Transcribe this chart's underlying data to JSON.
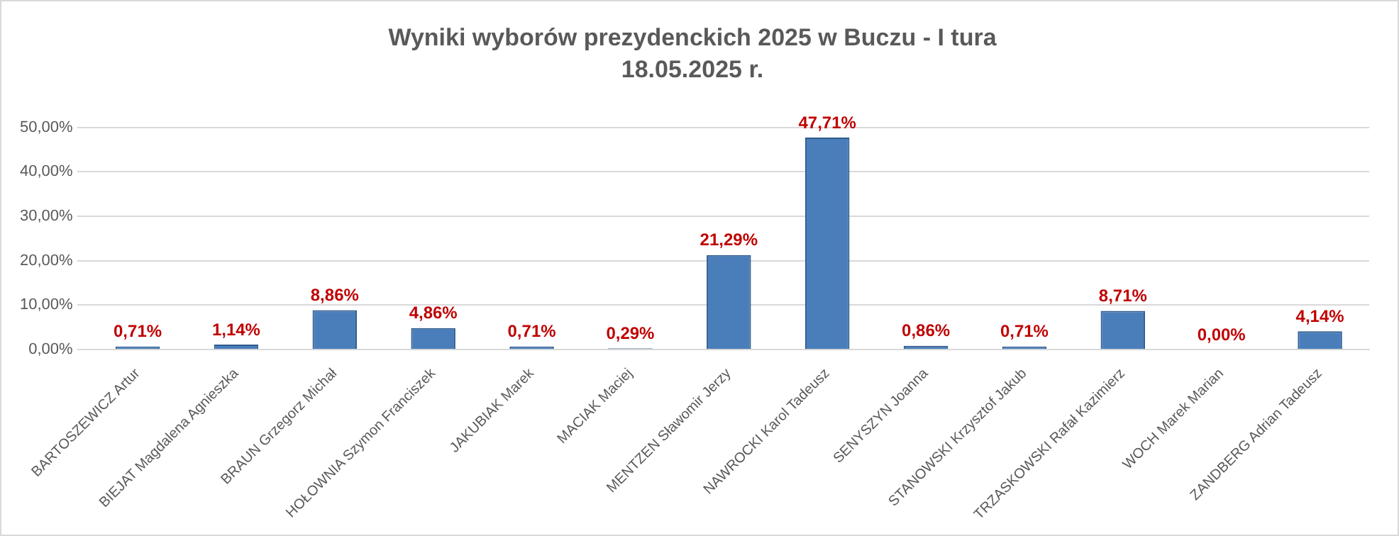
{
  "chart_data": {
    "type": "bar",
    "title": "Wyniki wyborów prezydenckich 2025 w Buczu - I tura",
    "subtitle": "18.05.2025 r.",
    "categories": [
      "BARTOSZEWICZ Artur",
      "BIEJAT Magdalena Agnieszka",
      "BRAUN Grzegorz Michał",
      "HOŁOWNIA Szymon Franciszek",
      "JAKUBIAK Marek",
      "MACIAK Maciej",
      "MENTZEN Sławomir Jerzy",
      "NAWROCKI Karol Tadeusz",
      "SENYSZYN Joanna",
      "STANOWSKI Krzysztof Jakub",
      "TRZASKOWSKI Rafał Kazimierz",
      "WOCH Marek Marian",
      "ZANDBERG Adrian Tadeusz"
    ],
    "values": [
      0.71,
      1.14,
      8.86,
      4.86,
      0.71,
      0.29,
      21.29,
      47.71,
      0.86,
      0.71,
      8.71,
      0.0,
      4.14
    ],
    "value_labels": [
      "0,71%",
      "1,14%",
      "8,86%",
      "4,86%",
      "0,71%",
      "0,29%",
      "21,29%",
      "47,71%",
      "0,86%",
      "0,71%",
      "8,71%",
      "0,00%",
      "4,14%"
    ],
    "color": "#4a7ebb",
    "ylim": [
      0,
      50
    ],
    "yticks": [
      {
        "value": 0,
        "label": "0,00%"
      },
      {
        "value": 10,
        "label": "10,00%"
      },
      {
        "value": 20,
        "label": "20,00%"
      },
      {
        "value": 30,
        "label": "30,00%"
      },
      {
        "value": 40,
        "label": "40,00%"
      },
      {
        "value": 50,
        "label": "50,00%"
      }
    ],
    "grid": "y",
    "legend": false
  }
}
